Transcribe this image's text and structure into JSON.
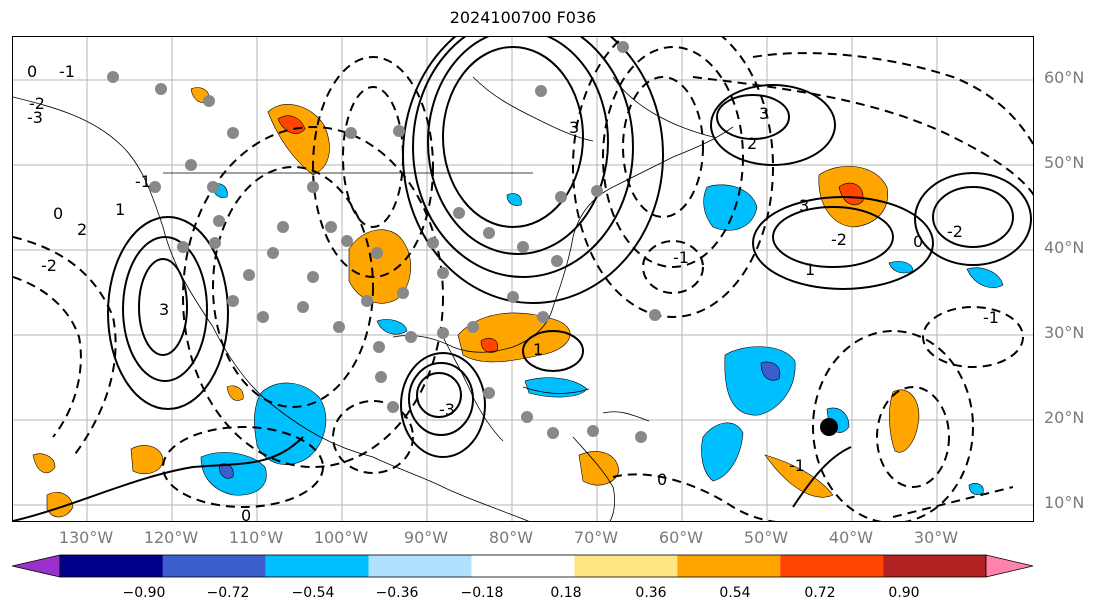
{
  "title": "2024100700 F036",
  "lat_labels": [
    "60°N",
    "50°N",
    "40°N",
    "30°N",
    "20°N",
    "10°N"
  ],
  "lon_labels": [
    "130°W",
    "120°W",
    "110°W",
    "100°W",
    "90°W",
    "80°W",
    "70°W",
    "60°W",
    "50°W",
    "40°W",
    "30°W"
  ],
  "colorbar": {
    "ticks": [
      "−0.90",
      "−0.72",
      "−0.54",
      "−0.36",
      "−0.18",
      "0.18",
      "0.36",
      "0.54",
      "0.72",
      "0.90"
    ],
    "colors": [
      "#9932cc",
      "#00008b",
      "#3a5fcd",
      "#00bfff",
      "#b0e2ff",
      "#ffffff",
      "#ffe680",
      "#ffa500",
      "#ff4500",
      "#b22222",
      "#ff82ab"
    ]
  },
  "contour_labels": [
    "0",
    "-1",
    "-2",
    "-3",
    "0",
    "1",
    "2",
    "3",
    "-1",
    "-2",
    "3",
    "-3",
    "2",
    "1",
    "0",
    "-2",
    "3",
    "-1",
    "1",
    "3",
    "-2",
    "0",
    "-1",
    "0",
    "-1"
  ]
}
